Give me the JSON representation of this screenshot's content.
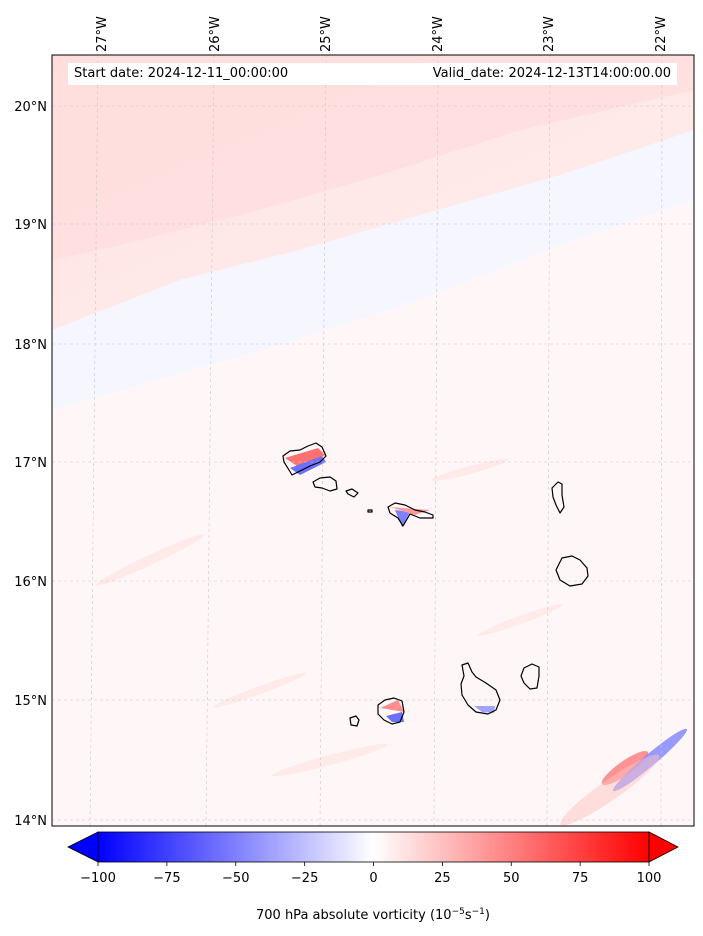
{
  "chart_data": {
    "type": "heatmap",
    "title": "",
    "start_date_text": "Start date: 2024-12-11_00:00:00",
    "valid_date_text": "Valid_date: 2024-12-13T14:00:00.00",
    "lon_ticks": [
      "27°W",
      "26°W",
      "25°W",
      "24°W",
      "23°W",
      "22°W"
    ],
    "lon_values": [
      -27,
      -26,
      -25,
      -24,
      -23,
      -22
    ],
    "lat_ticks": [
      "20°N",
      "19°N",
      "18°N",
      "17°N",
      "16°N",
      "15°N",
      "14°N"
    ],
    "lat_values": [
      20,
      19,
      18,
      17,
      16,
      15,
      14
    ],
    "lon_range": [
      -27.35,
      -21.8
    ],
    "lat_range": [
      13.95,
      20.4
    ],
    "colorbar": {
      "label": "700 hPa absolute vorticity (10",
      "label_exp": "−5",
      "label_unit": "s",
      "label_exp2": "−1",
      "label_close": ")",
      "ticks": [
        "−100",
        "−75",
        "−50",
        "−25",
        "0",
        "25",
        "50",
        "75",
        "100"
      ],
      "values": [
        -100,
        -75,
        -50,
        -25,
        0,
        25,
        50,
        75,
        100
      ],
      "range": [
        -100,
        100
      ],
      "cmap": "bwr",
      "extend": "both"
    },
    "grid": true
  },
  "colors": {
    "neg": "#0000ff",
    "pos": "#ff0000",
    "zero": "#ffffff",
    "coast": "#000000"
  }
}
